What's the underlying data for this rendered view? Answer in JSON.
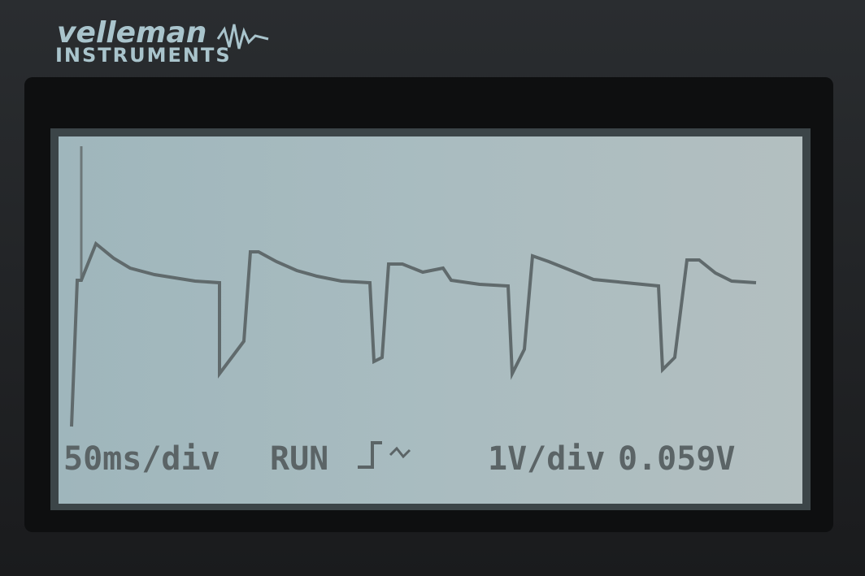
{
  "brand": {
    "name": "velleman",
    "line": "INSTRUMENTS"
  },
  "status": {
    "timebase": "50ms/div",
    "mode": "RUN",
    "volts": "1V/div",
    "reading": "0.059V"
  }
}
